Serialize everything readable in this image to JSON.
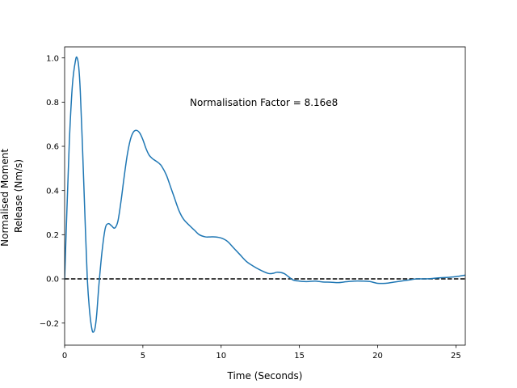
{
  "chart_data": {
    "type": "line",
    "title": "",
    "xlabel": "Time (Seconds)",
    "ylabel_lines": [
      "Normalised Moment",
      "Release (Nm/s)"
    ],
    "xlim": [
      0,
      25.6
    ],
    "ylim": [
      -0.3,
      1.05
    ],
    "xticks": [
      0,
      5,
      10,
      15,
      20,
      25
    ],
    "yticks": [
      -0.2,
      0.0,
      0.2,
      0.4,
      0.6,
      0.8,
      1.0
    ],
    "xtick_labels": [
      "0",
      "5",
      "10",
      "15",
      "20",
      "25"
    ],
    "ytick_labels": [
      "−0.2",
      "0.0",
      "0.2",
      "0.4",
      "0.6",
      "0.8",
      "1.0"
    ],
    "annotation": {
      "text": "Normalisation Factor = 8.16e8",
      "x": 8.0,
      "y": 0.8
    },
    "reference_line": {
      "y": 0.0,
      "style": "dashed",
      "color": "#000000"
    },
    "grid": false,
    "series": [
      {
        "color": "#1f77b4",
        "x": [
          0,
          0.15,
          0.3,
          0.5,
          0.7,
          0.8,
          0.9,
          1.0,
          1.15,
          1.3,
          1.45,
          1.6,
          1.75,
          1.85,
          1.95,
          2.05,
          2.2,
          2.4,
          2.6,
          2.8,
          3.0,
          3.2,
          3.4,
          3.6,
          3.8,
          4.0,
          4.2,
          4.4,
          4.6,
          4.8,
          5.0,
          5.2,
          5.4,
          5.6,
          5.8,
          6.0,
          6.2,
          6.5,
          6.8,
          7.0,
          7.3,
          7.6,
          8.0,
          8.3,
          8.6,
          9.0,
          9.3,
          9.6,
          10.0,
          10.4,
          10.8,
          11.2,
          11.6,
          12.0,
          12.5,
          13.0,
          13.3,
          13.6,
          14.0,
          14.3,
          14.6,
          15.0,
          15.3,
          15.6,
          16.0,
          16.5,
          17.0,
          17.5,
          18.0,
          18.5,
          19.0,
          19.5,
          20.0,
          20.5,
          21.0,
          21.5,
          22.0,
          22.5,
          23.0,
          23.5,
          24.0,
          24.5,
          25.0,
          25.6
        ],
        "y": [
          0.0,
          0.32,
          0.62,
          0.88,
          0.99,
          1.0,
          0.96,
          0.85,
          0.58,
          0.28,
          0.0,
          -0.15,
          -0.23,
          -0.24,
          -0.22,
          -0.16,
          -0.02,
          0.13,
          0.23,
          0.25,
          0.24,
          0.23,
          0.26,
          0.35,
          0.46,
          0.56,
          0.63,
          0.665,
          0.672,
          0.66,
          0.63,
          0.59,
          0.56,
          0.545,
          0.535,
          0.525,
          0.51,
          0.47,
          0.41,
          0.37,
          0.31,
          0.27,
          0.24,
          0.22,
          0.2,
          0.19,
          0.19,
          0.19,
          0.185,
          0.17,
          0.14,
          0.11,
          0.08,
          0.06,
          0.04,
          0.025,
          0.025,
          0.03,
          0.025,
          0.01,
          -0.005,
          -0.01,
          -0.012,
          -0.012,
          -0.01,
          -0.014,
          -0.015,
          -0.017,
          -0.013,
          -0.01,
          -0.01,
          -0.012,
          -0.02,
          -0.02,
          -0.015,
          -0.01,
          -0.005,
          0.0,
          0.0,
          0.002,
          0.005,
          0.007,
          0.01,
          0.017
        ]
      }
    ]
  }
}
